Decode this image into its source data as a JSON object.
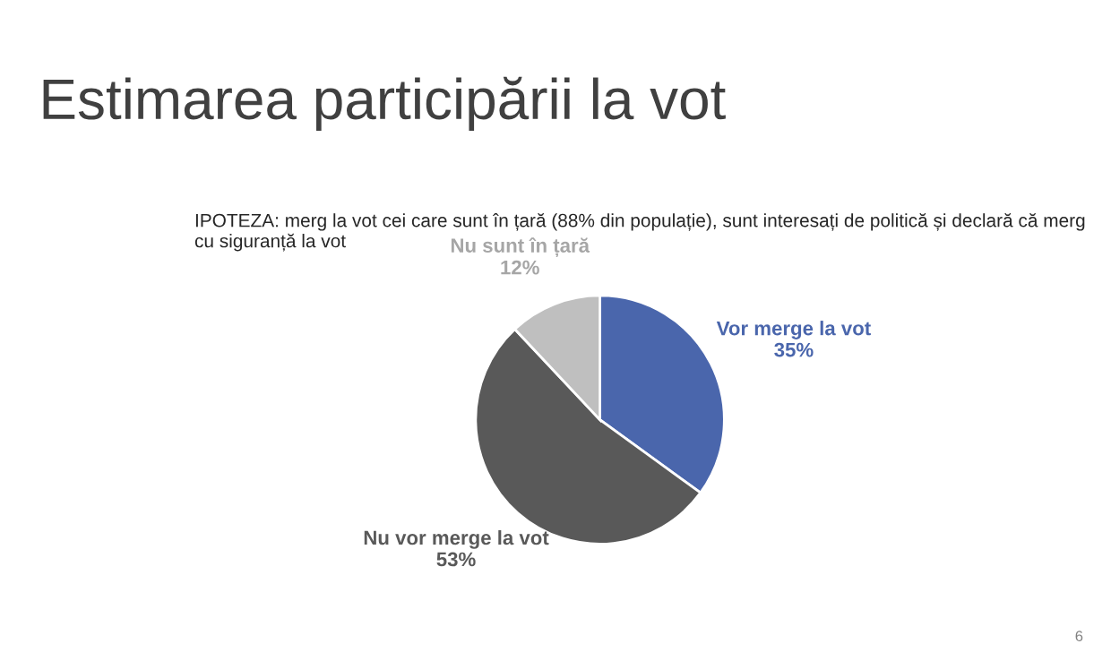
{
  "chart_data": {
    "type": "pie",
    "title": "Estimarea participării la vot",
    "subtitle": "IPOTEZA: merg la vot cei care sunt în țară (88% din populație), sunt interesați de politică și declară că merg cu siguranță la vot",
    "categories": [
      "Vor merge la vot",
      "Nu vor merge la vot",
      "Nu sunt în țară"
    ],
    "values": [
      35,
      53,
      12
    ],
    "value_labels": [
      "35%",
      "53%",
      "12%"
    ],
    "colors": [
      "#4a66ac",
      "#595959",
      "#bfbfbf"
    ],
    "annotations": [
      "6"
    ]
  }
}
